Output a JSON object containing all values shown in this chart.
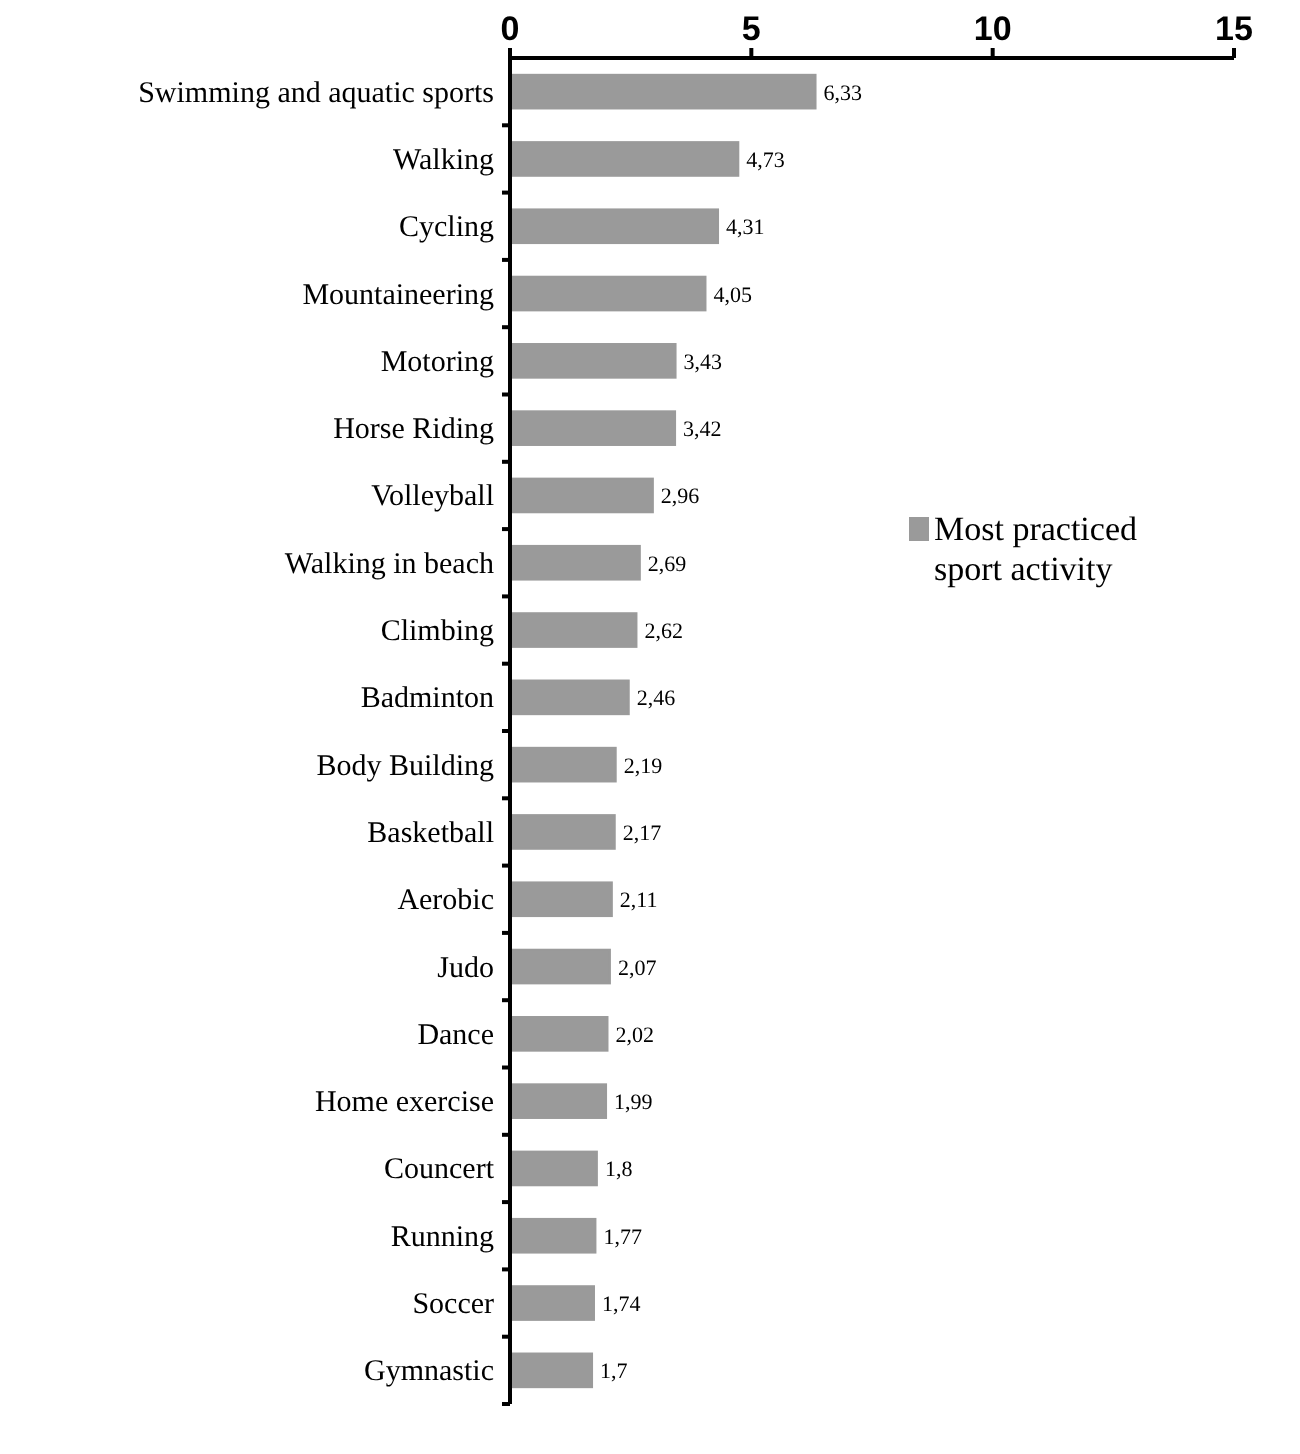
{
  "chart_data": {
    "type": "bar",
    "orientation": "horizontal",
    "categories": [
      "Swimming and aquatic sports",
      "Walking",
      "Cycling",
      "Mountaineering",
      "Motoring",
      "Horse Riding",
      "Volleyball",
      "Walking in beach",
      "Climbing",
      "Badminton",
      "Body Building",
      "Basketball",
      "Aerobic",
      "Judo",
      "Dance",
      "Home exercise",
      "Councert",
      "Running",
      "Soccer",
      "Gymnastic"
    ],
    "series": [
      {
        "name": "Most practiced sport activity",
        "color": "#9a9a9a",
        "values": [
          6.33,
          4.73,
          4.31,
          4.05,
          3.43,
          3.42,
          2.96,
          2.69,
          2.62,
          2.46,
          2.19,
          2.17,
          2.11,
          2.07,
          2.02,
          1.99,
          1.8,
          1.77,
          1.74,
          1.7
        ],
        "value_labels": [
          "6,33",
          "4,73",
          "4,31",
          "4,05",
          "3,43",
          "3,42",
          "2,96",
          "2,69",
          "2,62",
          "2,46",
          "2,19",
          "2,17",
          "2,11",
          "2,07",
          "2,02",
          "1,99",
          "1,8",
          "1,77",
          "1,74",
          "1,7"
        ]
      }
    ],
    "xlim": [
      0,
      15
    ],
    "xticks": [
      0,
      5,
      10,
      15
    ],
    "grid": false,
    "legend": "right"
  }
}
